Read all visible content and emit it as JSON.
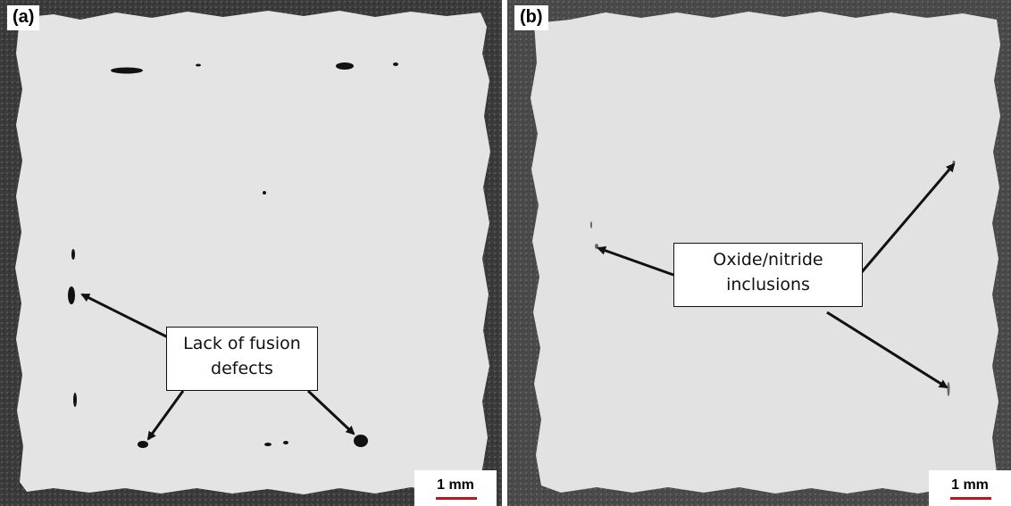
{
  "panel_a": {
    "label": "(a)",
    "callout": {
      "line1": "Lack of fusion",
      "line2": "defects"
    },
    "scale": "1 mm"
  },
  "panel_b": {
    "label": "(b)",
    "callout": {
      "line1": "Oxide/nitride",
      "line2": "inclusions"
    },
    "scale": "1 mm"
  },
  "colors": {
    "background_mount": "#3a3a3a",
    "sample_surface": "#e4e4e4",
    "scale_bar": "#c0141b",
    "arrow": "#111111"
  }
}
